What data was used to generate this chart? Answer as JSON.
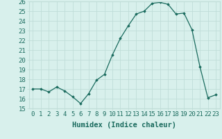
{
  "x": [
    0,
    1,
    2,
    3,
    4,
    5,
    6,
    7,
    8,
    9,
    10,
    11,
    12,
    13,
    14,
    15,
    16,
    17,
    18,
    19,
    20,
    21,
    22,
    23
  ],
  "y": [
    17.0,
    17.0,
    16.7,
    17.2,
    16.8,
    16.2,
    15.5,
    16.5,
    17.9,
    18.5,
    20.5,
    22.2,
    23.5,
    24.7,
    25.0,
    25.8,
    25.9,
    25.7,
    24.7,
    24.8,
    23.1,
    19.3,
    16.1,
    16.4
  ],
  "xlabel": "Humidex (Indice chaleur)",
  "ylim": [
    15,
    26
  ],
  "xlim": [
    -0.5,
    23.5
  ],
  "yticks": [
    15,
    16,
    17,
    18,
    19,
    20,
    21,
    22,
    23,
    24,
    25,
    26
  ],
  "xticks": [
    0,
    1,
    2,
    3,
    4,
    5,
    6,
    7,
    8,
    9,
    10,
    11,
    12,
    13,
    14,
    15,
    16,
    17,
    18,
    19,
    20,
    21,
    22,
    23
  ],
  "line_color": "#1a6b5e",
  "marker_color": "#1a6b5e",
  "bg_color": "#d8f0ec",
  "grid_color": "#c0ddd8",
  "xlabel_fontsize": 7.5,
  "tick_fontsize": 6.5
}
